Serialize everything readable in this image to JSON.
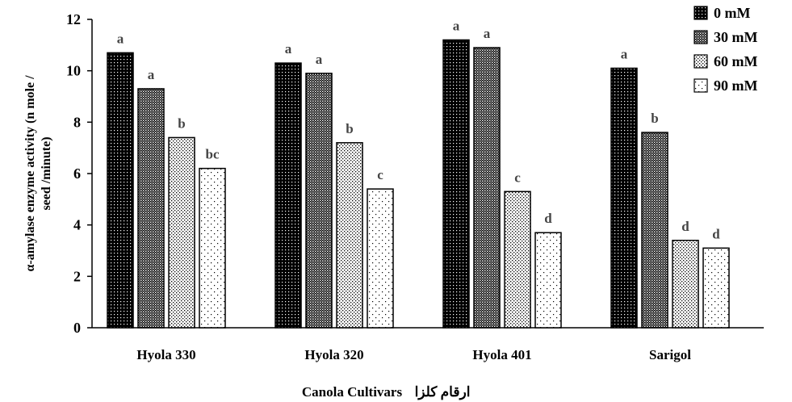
{
  "chart_data": {
    "type": "bar",
    "categories": [
      "Hyola 330",
      "Hyola 320",
      "Hyola 401",
      "Sarigol"
    ],
    "series": [
      {
        "name": "0 mM",
        "values": [
          10.7,
          10.3,
          11.2,
          10.1
        ],
        "letters": [
          "a",
          "a",
          "a",
          "a"
        ]
      },
      {
        "name": "30 mM",
        "values": [
          9.3,
          9.9,
          10.9,
          7.6
        ],
        "letters": [
          "a",
          "a",
          "a",
          "b"
        ]
      },
      {
        "name": "60 mM",
        "values": [
          7.4,
          7.2,
          5.3,
          3.4
        ],
        "letters": [
          "b",
          "b",
          "c",
          "d"
        ]
      },
      {
        "name": "90 mM",
        "values": [
          6.2,
          5.4,
          3.7,
          3.1
        ],
        "letters": [
          "bc",
          "c",
          "d",
          "d"
        ]
      }
    ],
    "ylabel_line1": "α-amylase enzyme activity (n mole /",
    "ylabel_line2": "seed /minute)",
    "xlabel_latin": "Canola Cultivars",
    "xlabel_persian": "ارقام کلزا",
    "ylim": [
      0,
      12
    ],
    "yticks": [
      0,
      2,
      4,
      6,
      8,
      10,
      12
    ],
    "grid": false,
    "legend_position": "top-right"
  }
}
